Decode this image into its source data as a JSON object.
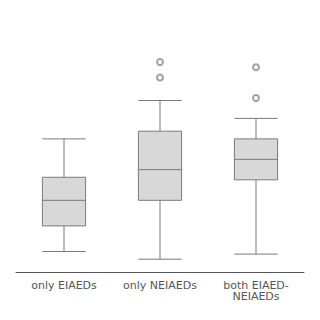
{
  "chart_data": {
    "type": "boxplot",
    "categories": [
      "only EIAEDs",
      "only NEIAEDs",
      "both EIAED-\nNEIAEDs"
    ],
    "boxes": [
      {
        "whislo": 8,
        "q1": 18,
        "med": 28,
        "q3": 37,
        "whishi": 52,
        "fliers": []
      },
      {
        "whislo": 5,
        "q1": 28,
        "med": 40,
        "q3": 55,
        "whishi": 67,
        "fliers": [
          76,
          82
        ]
      },
      {
        "whislo": 7,
        "q1": 36,
        "med": 44,
        "q3": 52,
        "whishi": 60,
        "fliers": [
          68,
          80
        ]
      }
    ],
    "color": "#d8d8d8",
    "ylim": [
      0,
      100
    ],
    "grid": false,
    "tick_labels": "x"
  }
}
